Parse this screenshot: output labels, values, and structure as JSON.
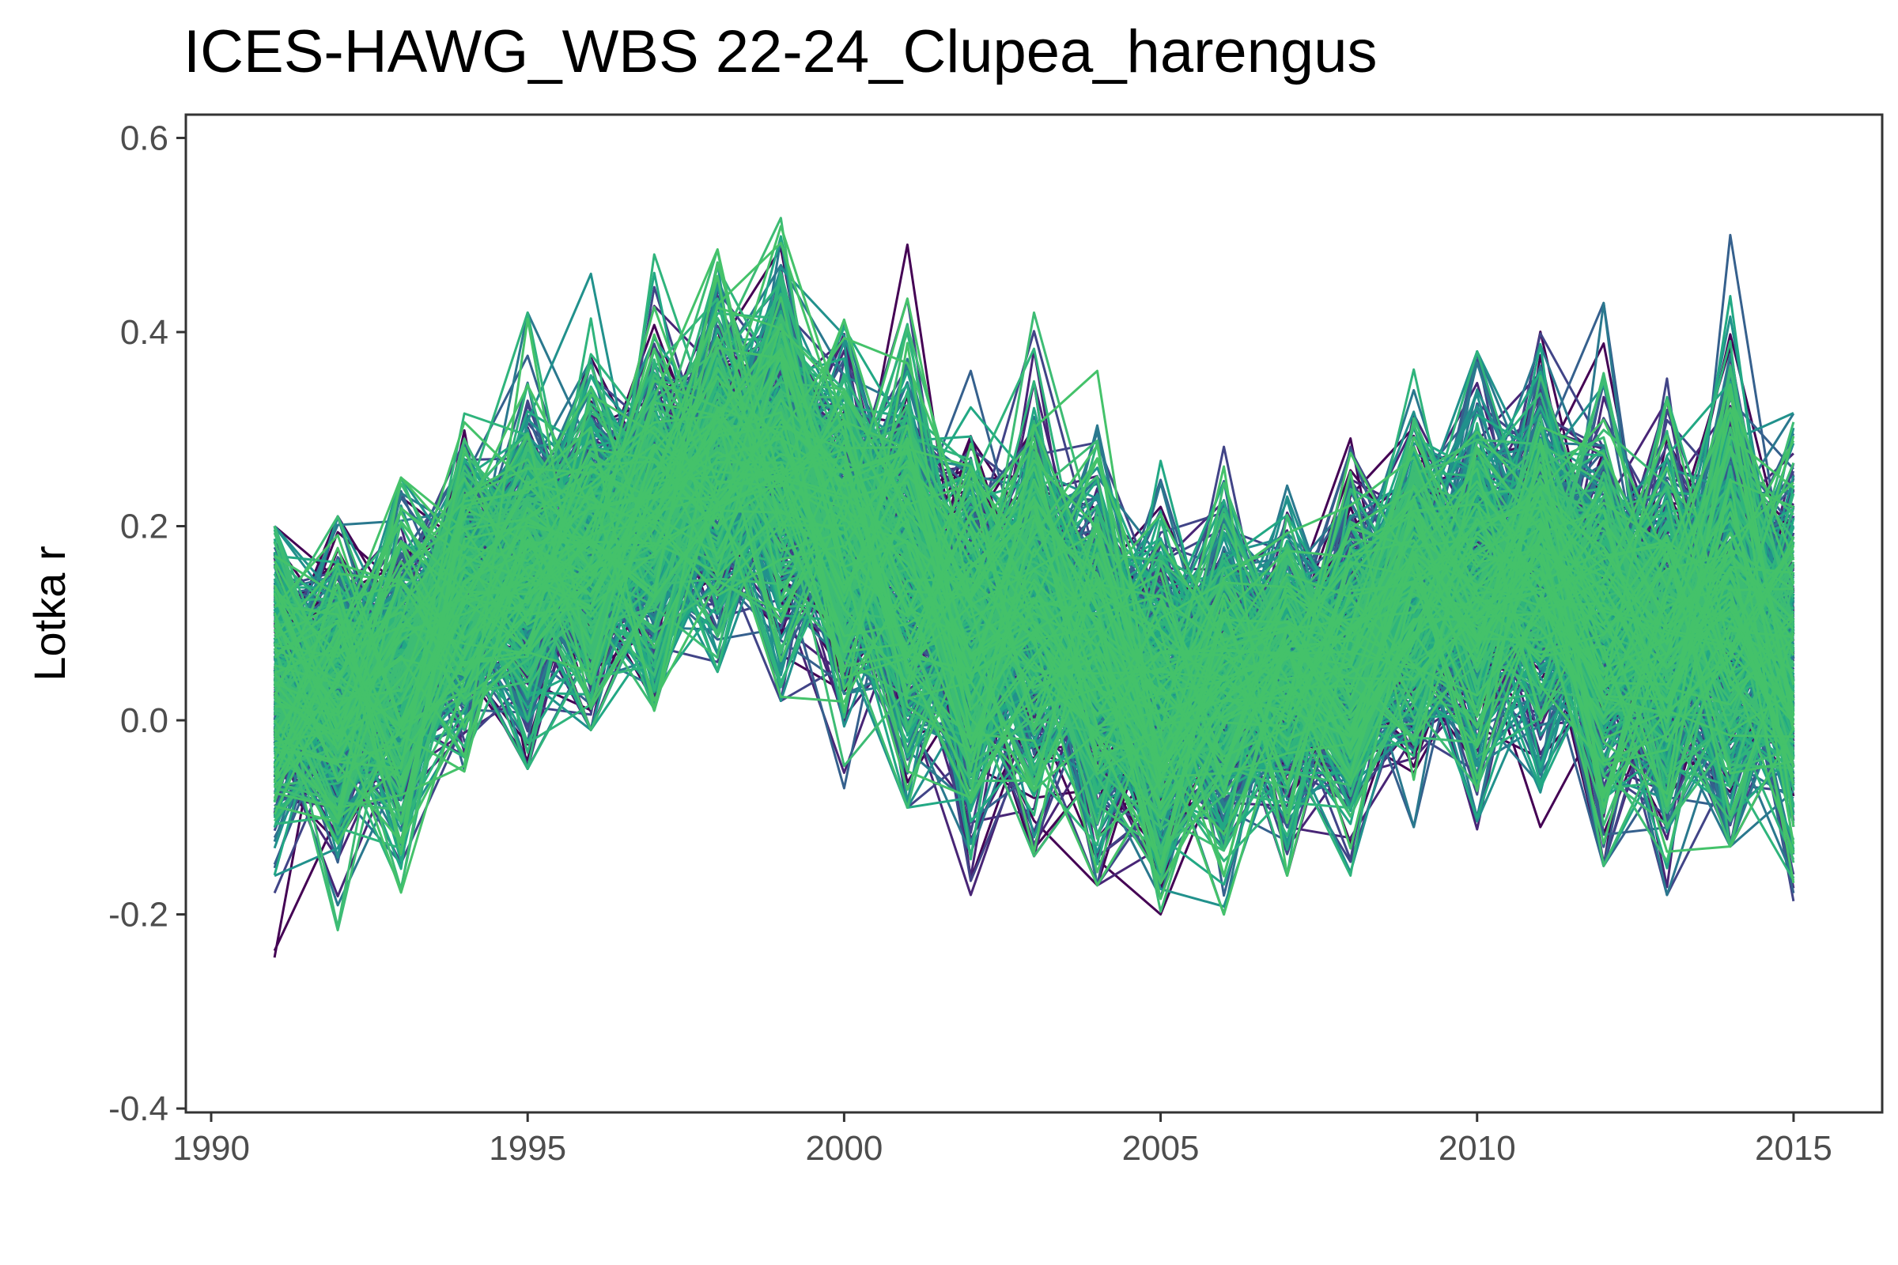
{
  "chart_data": {
    "type": "line",
    "title": "ICES-HAWG_WBS 22-24_Clupea_harengus",
    "xlabel": "",
    "ylabel": "Lotka r",
    "xlim": [
      1989.6,
      2016.4
    ],
    "ylim": [
      -0.404,
      0.624
    ],
    "x_ticks": [
      1990,
      1995,
      2000,
      2005,
      2010,
      2015
    ],
    "y_ticks": [
      -0.4,
      -0.2,
      0.0,
      0.2,
      0.4,
      0.6
    ],
    "y_tick_labels": [
      "-0.4",
      "-0.2",
      "0.0",
      "0.2",
      "0.4",
      "0.6"
    ],
    "grid": false,
    "legend": "none",
    "series_count_estimate": 500,
    "x": [
      1991,
      1992,
      1993,
      1994,
      1995,
      1996,
      1997,
      1998,
      1999,
      2000,
      2001,
      2002,
      2003,
      2004,
      2005,
      2006,
      2007,
      2008,
      2009,
      2010,
      2011,
      2012,
      2013,
      2014,
      2015
    ],
    "median": [
      0.03,
      0.02,
      0.04,
      0.13,
      0.15,
      0.18,
      0.21,
      0.26,
      0.27,
      0.19,
      0.15,
      0.09,
      0.11,
      0.07,
      0.02,
      0.04,
      0.05,
      0.06,
      0.13,
      0.14,
      0.16,
      0.1,
      0.08,
      0.12,
      0.06
    ],
    "band_low": [
      -0.22,
      -0.2,
      -0.17,
      -0.05,
      -0.02,
      0.02,
      0.04,
      0.08,
      0.05,
      -0.04,
      -0.06,
      -0.15,
      -0.11,
      -0.14,
      -0.19,
      -0.17,
      -0.13,
      -0.13,
      -0.08,
      -0.09,
      -0.08,
      -0.12,
      -0.15,
      -0.1,
      -0.16
    ],
    "band_high": [
      0.19,
      0.2,
      0.24,
      0.34,
      0.41,
      0.45,
      0.47,
      0.51,
      0.58,
      0.41,
      0.48,
      0.35,
      0.41,
      0.35,
      0.26,
      0.28,
      0.25,
      0.31,
      0.36,
      0.37,
      0.42,
      0.42,
      0.35,
      0.49,
      0.33
    ],
    "colors": [
      "#440154",
      "#482576",
      "#414487",
      "#35608d",
      "#2a788e",
      "#21918c",
      "#22a884",
      "#2fb47c",
      "#3dbc74",
      "#44c26a"
    ]
  }
}
